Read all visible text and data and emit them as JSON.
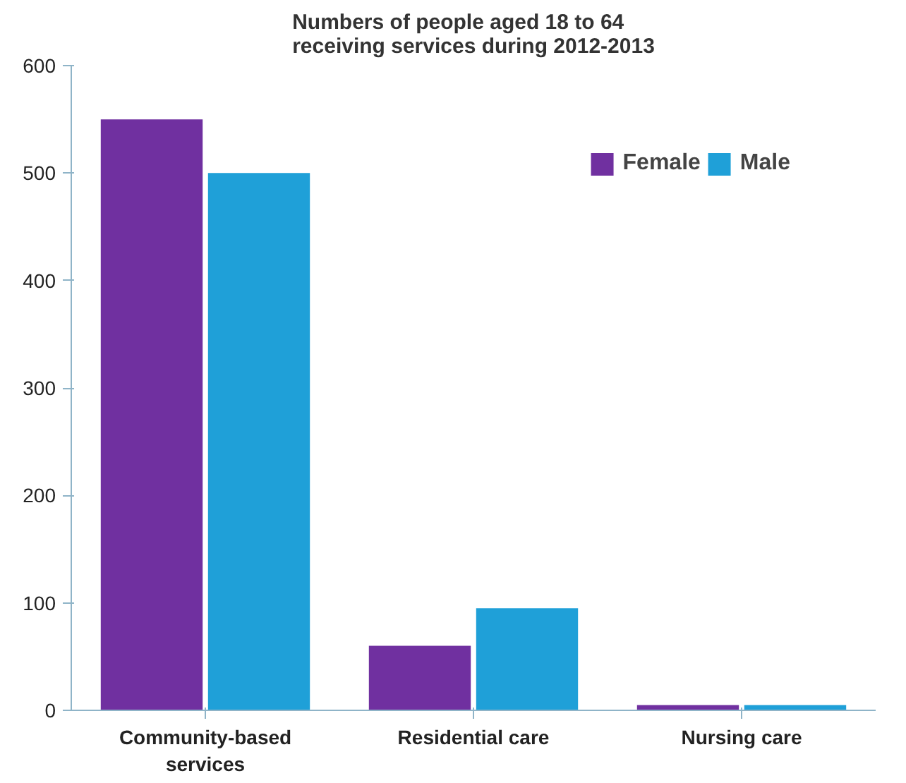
{
  "chart_data": {
    "type": "bar",
    "title": "Numbers of people aged 18 to 64\nreceiving services during 2012-2013",
    "categories": [
      "Community-based services",
      "Residential care",
      "Nursing care"
    ],
    "series": [
      {
        "name": "Female",
        "color": "#7030a0",
        "values": [
          550,
          60,
          5
        ]
      },
      {
        "name": "Male",
        "color": "#1fa0d8",
        "values": [
          500,
          95,
          5
        ]
      }
    ],
    "ylim": [
      0,
      600
    ],
    "yticks": [
      0,
      100,
      200,
      300,
      400,
      500,
      600
    ],
    "grid": false,
    "legend": "top right"
  }
}
